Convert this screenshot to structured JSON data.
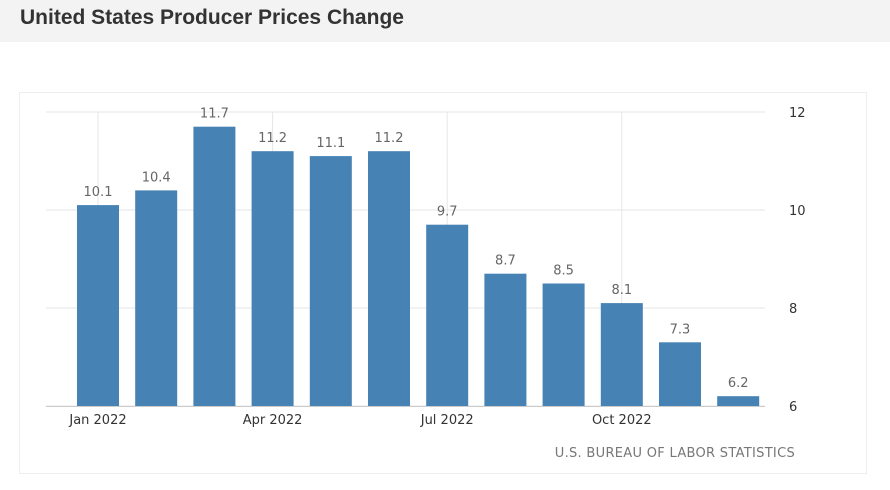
{
  "header": {
    "title": "United States Producer Prices Change"
  },
  "source": "U.S. BUREAU OF LABOR STATISTICS",
  "colors": {
    "bar": "#4682b4",
    "grid": "#e6e6e6",
    "label": "#666666",
    "tick": "#333333"
  },
  "chart_data": {
    "type": "bar",
    "title": "United States Producer Prices Change",
    "categories": [
      "Jan 2022",
      "Feb 2022",
      "Mar 2022",
      "Apr 2022",
      "May 2022",
      "Jun 2022",
      "Jul 2022",
      "Aug 2022",
      "Sep 2022",
      "Oct 2022",
      "Nov 2022",
      "Dec 2022"
    ],
    "values": [
      10.1,
      10.4,
      11.7,
      11.2,
      11.1,
      11.2,
      9.7,
      8.7,
      8.5,
      8.1,
      7.3,
      6.2
    ],
    "data_labels": [
      "10.1",
      "10.4",
      "11.7",
      "11.2",
      "11.1",
      "11.2",
      "9.7",
      "8.7",
      "8.5",
      "8.1",
      "7.3",
      "6.2"
    ],
    "x_tick_labels": [
      "Jan 2022",
      "Apr 2022",
      "Jul 2022",
      "Oct 2022"
    ],
    "y_ticks": [
      6,
      8,
      10,
      12
    ],
    "ylim": [
      6,
      12
    ],
    "y_axis_position": "right",
    "grid": true,
    "legend": "none",
    "xlabel": "",
    "ylabel": ""
  }
}
